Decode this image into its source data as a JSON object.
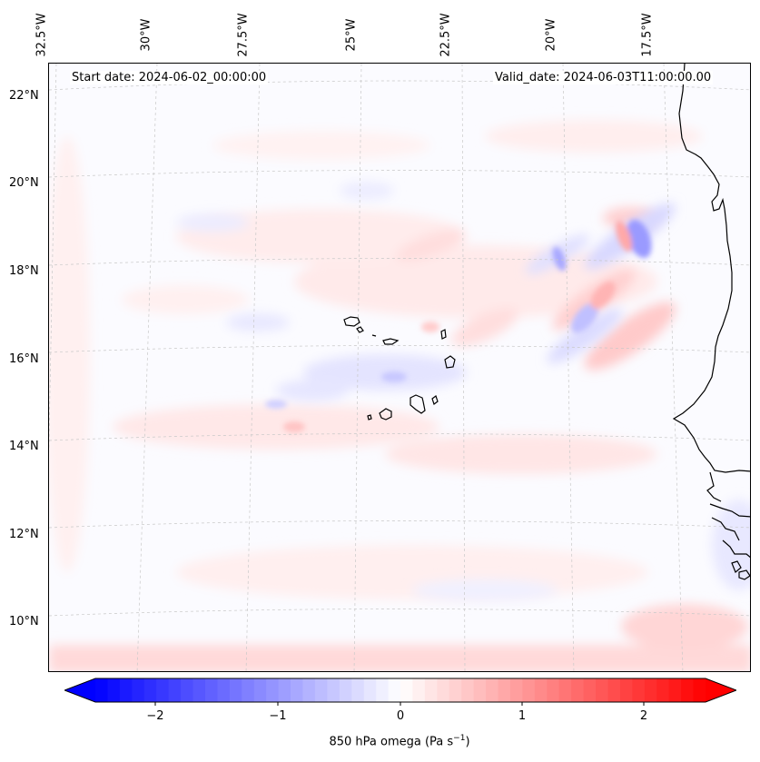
{
  "header": {
    "start_date": "Start date: 2024-06-02_00:00:00",
    "valid_date": "Valid_date: 2024-06-03T11:00:00.00"
  },
  "axes": {
    "longitude_labels": [
      "32.5°W",
      "30°W",
      "27.5°W",
      "25°W",
      "22.5°W",
      "20°W",
      "17.5°W"
    ],
    "latitude_labels": [
      "22°N",
      "20°N",
      "18°N",
      "16°N",
      "14°N",
      "12°N",
      "10°N"
    ]
  },
  "colorbar": {
    "ticks": [
      "−2",
      "−1",
      "0",
      "1",
      "2"
    ],
    "label_prefix": "850 hPa omega (Pa s",
    "label_exp": "−1",
    "label_suffix": ")",
    "min_color": "#0000ff",
    "mid_color": "#ffffff",
    "max_color": "#ff0000"
  },
  "map": {
    "field": "850 hPa omega",
    "land_outline_color": "#000000",
    "grid_color": "#c8c8c8"
  }
}
